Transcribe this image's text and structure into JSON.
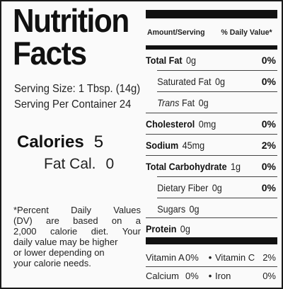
{
  "title_line1": "Nutrition",
  "title_line2": "Facts",
  "serving_size": "Serving Size: 1 Tbsp. (14g)",
  "servings_per_container": "Serving Per Container 24",
  "calories": {
    "label": "Calories",
    "value": "5"
  },
  "fat_calories": {
    "label": "Fat Cal.",
    "value": "0"
  },
  "footnote": {
    "lines": [
      [
        "*Percent",
        "Daily",
        "Values"
      ],
      [
        "(DV)",
        "are",
        "based",
        "on",
        "a"
      ],
      [
        "2,000",
        "calorie",
        "diet.",
        "Your"
      ],
      [
        "daily value may be higher"
      ],
      [
        "or lower depending on"
      ],
      [
        "your calorie needs."
      ]
    ]
  },
  "table_header": {
    "amount": "Amount/Serving",
    "dv": "% Daily Value*"
  },
  "nutrients": [
    {
      "label": "Total Fat",
      "value": "0g",
      "pct": "0%",
      "bold": true,
      "indent": false
    },
    {
      "label": "Saturated Fat",
      "value": "0g",
      "pct": "0%",
      "bold": false,
      "indent": true
    },
    {
      "label_italic": "Trans",
      "label": " Fat",
      "value": "0g",
      "pct": "",
      "bold": false,
      "indent": true
    },
    {
      "label": "Cholesterol",
      "value": "0mg",
      "pct": "0%",
      "bold": true,
      "indent": false
    },
    {
      "label": "Sodium",
      "value": "45mg",
      "pct": "2%",
      "bold": true,
      "indent": false
    },
    {
      "label": "Total Carbohydrate",
      "value": "1g",
      "pct": "0%",
      "bold": true,
      "indent": false
    },
    {
      "label": "Dietary Fiber",
      "value": "0g",
      "pct": "0%",
      "bold": false,
      "indent": true
    },
    {
      "label": "Sugars",
      "value": "0g",
      "pct": "",
      "bold": false,
      "indent": true
    },
    {
      "label": "Protein",
      "value": "0g",
      "pct": "",
      "bold": true,
      "indent": false
    }
  ],
  "vitamins": [
    {
      "a_label": "Vitamin A",
      "a_pct": "0%",
      "b_label": "Vitamin C",
      "b_pct": "2%"
    },
    {
      "a_label": "Calcium",
      "a_pct": "0%",
      "b_label": "Iron",
      "b_pct": "0%"
    }
  ],
  "separator": "•"
}
